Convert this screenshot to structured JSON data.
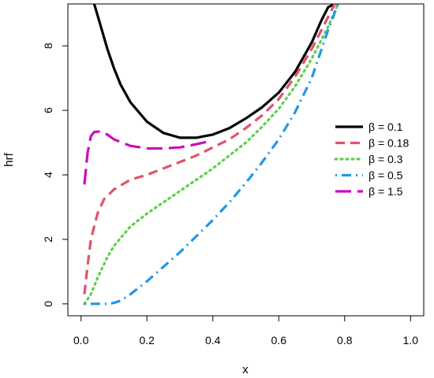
{
  "chart_data": {
    "type": "line",
    "xlabel": "x",
    "ylabel": "hrf",
    "xlim": [
      -0.04,
      1.04
    ],
    "ylim": [
      -0.37,
      9.3
    ],
    "xticks": [
      "0.0",
      "0.2",
      "0.4",
      "0.6",
      "0.8",
      "1.0"
    ],
    "yticks": [
      "0",
      "2",
      "4",
      "6",
      "8"
    ],
    "grid": false,
    "legend_position": "right",
    "series": [
      {
        "name": "β = 0.1",
        "color": "#000000",
        "linestyle": "solid",
        "x": [
          0.04,
          0.06,
          0.08,
          0.1,
          0.12,
          0.15,
          0.2,
          0.25,
          0.3,
          0.35,
          0.4,
          0.45,
          0.5,
          0.55,
          0.6,
          0.65,
          0.7,
          0.73,
          0.75,
          0.77
        ],
        "y": [
          9.3,
          8.6,
          7.9,
          7.3,
          6.8,
          6.25,
          5.65,
          5.3,
          5.15,
          5.15,
          5.25,
          5.45,
          5.75,
          6.1,
          6.55,
          7.2,
          8.1,
          8.8,
          9.2,
          9.3
        ]
      },
      {
        "name": "β = 0.18",
        "color": "#DF536B",
        "linestyle": "dashed",
        "x": [
          0.01,
          0.02,
          0.03,
          0.05,
          0.07,
          0.1,
          0.15,
          0.2,
          0.25,
          0.3,
          0.35,
          0.4,
          0.45,
          0.5,
          0.55,
          0.6,
          0.65,
          0.7,
          0.75,
          0.77
        ],
        "y": [
          0.3,
          1.2,
          2.0,
          2.8,
          3.25,
          3.55,
          3.85,
          4.0,
          4.2,
          4.4,
          4.6,
          4.85,
          5.1,
          5.45,
          5.85,
          6.35,
          7.05,
          7.9,
          8.9,
          9.3
        ]
      },
      {
        "name": "β = 0.3",
        "color": "#61D04F",
        "linestyle": "dotted",
        "x": [
          0.01,
          0.03,
          0.05,
          0.08,
          0.1,
          0.15,
          0.2,
          0.25,
          0.3,
          0.35,
          0.4,
          0.45,
          0.5,
          0.55,
          0.6,
          0.65,
          0.7,
          0.75,
          0.78
        ],
        "y": [
          0.0,
          0.3,
          0.8,
          1.45,
          1.8,
          2.4,
          2.8,
          3.15,
          3.5,
          3.85,
          4.2,
          4.6,
          5.0,
          5.5,
          6.05,
          6.75,
          7.6,
          8.6,
          9.3
        ]
      },
      {
        "name": "β = 0.5",
        "color": "#2297E6",
        "linestyle": "dashdot",
        "x": [
          0.01,
          0.05,
          0.08,
          0.1,
          0.12,
          0.15,
          0.2,
          0.25,
          0.3,
          0.35,
          0.4,
          0.45,
          0.5,
          0.55,
          0.6,
          0.65,
          0.7,
          0.75,
          0.78
        ],
        "y": [
          0.0,
          0.0,
          0.0,
          0.03,
          0.1,
          0.3,
          0.7,
          1.15,
          1.6,
          2.1,
          2.6,
          3.15,
          3.75,
          4.4,
          5.1,
          5.95,
          7.0,
          8.5,
          9.3
        ]
      },
      {
        "name": "β = 1.5",
        "color": "#CD0BBC",
        "linestyle": "longdash",
        "x": [
          0.01,
          0.02,
          0.03,
          0.04,
          0.06,
          0.08,
          0.1,
          0.15,
          0.2,
          0.25,
          0.3,
          0.35,
          0.38
        ],
        "y": [
          3.7,
          4.7,
          5.2,
          5.33,
          5.35,
          5.25,
          5.1,
          4.9,
          4.82,
          4.82,
          4.85,
          4.95,
          5.02
        ]
      }
    ]
  }
}
